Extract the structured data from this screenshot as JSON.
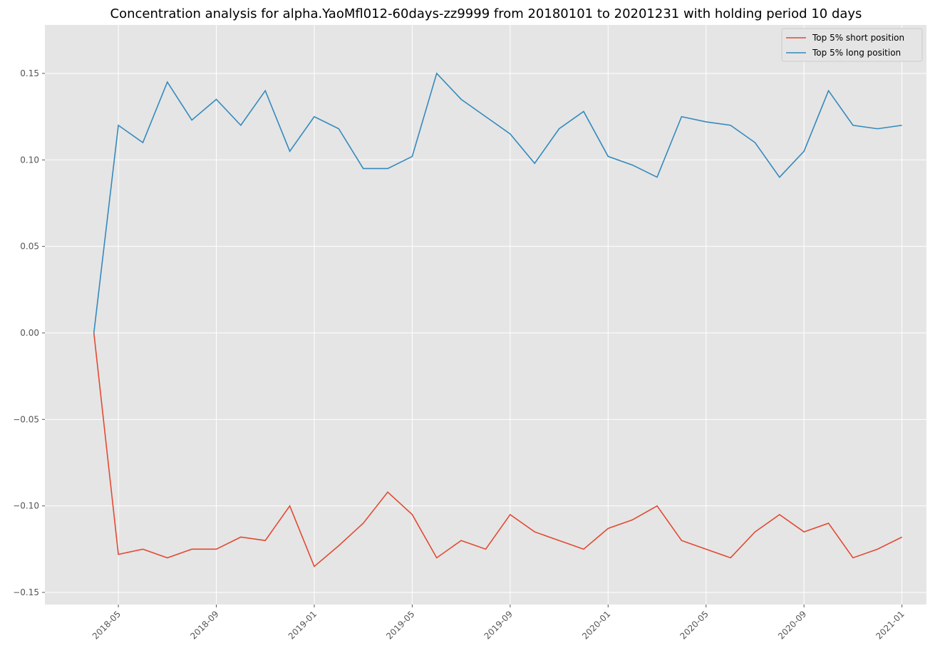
{
  "chart_data": {
    "type": "line",
    "title": "Concentration analysis for alpha.YaoMfl012-60days-zz9999 from 20180101 to 20201231 with holding period 10 days",
    "x": [
      "2018-04",
      "2018-05",
      "2018-06",
      "2018-07",
      "2018-08",
      "2018-09",
      "2018-10",
      "2018-11",
      "2018-12",
      "2019-01",
      "2019-02",
      "2019-03",
      "2019-04",
      "2019-05",
      "2019-06",
      "2019-07",
      "2019-08",
      "2019-09",
      "2019-10",
      "2019-11",
      "2019-12",
      "2020-01",
      "2020-02",
      "2020-03",
      "2020-04",
      "2020-05",
      "2020-06",
      "2020-07",
      "2020-08",
      "2020-09",
      "2020-10",
      "2020-11",
      "2020-12",
      "2021-01"
    ],
    "series": [
      {
        "name": "Top 5% short position",
        "color": "#e24a33",
        "values": [
          0,
          -0.128,
          -0.125,
          -0.13,
          -0.125,
          -0.125,
          -0.118,
          -0.12,
          -0.1,
          -0.135,
          -0.123,
          -0.11,
          -0.092,
          -0.105,
          -0.13,
          -0.12,
          -0.125,
          -0.105,
          -0.115,
          -0.12,
          -0.125,
          -0.113,
          -0.108,
          -0.1,
          -0.12,
          -0.125,
          -0.13,
          -0.115,
          -0.105,
          -0.115,
          -0.11,
          -0.13,
          -0.125,
          -0.118
        ]
      },
      {
        "name": "Top 5% long position",
        "color": "#348abd",
        "values": [
          0,
          0.12,
          0.11,
          0.145,
          0.123,
          0.135,
          0.12,
          0.14,
          0.105,
          0.125,
          0.118,
          0.095,
          0.095,
          0.102,
          0.15,
          0.135,
          0.125,
          0.115,
          0.098,
          0.118,
          0.128,
          0.102,
          0.097,
          0.09,
          0.125,
          0.122,
          0.12,
          0.11,
          0.09,
          0.105,
          0.14,
          0.12,
          0.118,
          0.12
        ]
      }
    ],
    "xlim": [
      "2018-02",
      "2021-02"
    ],
    "xticks": [
      "2018-05",
      "2018-09",
      "2019-01",
      "2019-05",
      "2019-09",
      "2020-01",
      "2020-05",
      "2020-09",
      "2021-01"
    ],
    "ylim": [
      -0.157,
      0.178
    ],
    "yticks": [
      {
        "value": -0.15,
        "label": "−0.15"
      },
      {
        "value": -0.1,
        "label": "−0.10"
      },
      {
        "value": -0.05,
        "label": "−0.05"
      },
      {
        "value": 0,
        "label": "0.00"
      },
      0.05,
      {
        "value": 0.1,
        "label": "0.10"
      },
      0.15
    ],
    "grid": true,
    "legend": "upper right"
  }
}
